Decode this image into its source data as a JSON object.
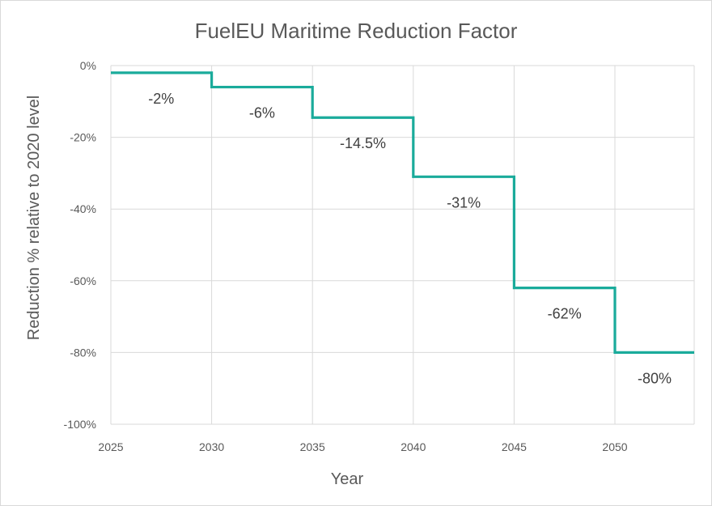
{
  "chart_data": {
    "type": "line",
    "step": true,
    "title": "FuelEU Maritime Reduction Factor",
    "xlabel": "Year",
    "ylabel": "Reduction % relative to 2020 level",
    "xlim": [
      2025,
      2054
    ],
    "ylim": [
      -100,
      0
    ],
    "x_ticks": [
      "2025",
      "2030",
      "2035",
      "2040",
      "2045",
      "2050"
    ],
    "y_ticks": [
      "0%",
      "-20%",
      "-40%",
      "-60%",
      "-80%",
      "-100%"
    ],
    "grid": true,
    "legend": "none",
    "color": "#1aab9b",
    "series": [
      {
        "segments": [
          {
            "x_start": 2025,
            "x_end": 2030,
            "value": -2,
            "label": "-2%"
          },
          {
            "x_start": 2030,
            "x_end": 2035,
            "value": -6,
            "label": "-6%"
          },
          {
            "x_start": 2035,
            "x_end": 2040,
            "value": -14.5,
            "label": "-14.5%"
          },
          {
            "x_start": 2040,
            "x_end": 2045,
            "value": -31,
            "label": "-31%"
          },
          {
            "x_start": 2045,
            "x_end": 2050,
            "value": -62,
            "label": "-62%"
          },
          {
            "x_start": 2050,
            "x_end": 2054,
            "value": -80,
            "label": "-80%"
          }
        ]
      }
    ]
  }
}
